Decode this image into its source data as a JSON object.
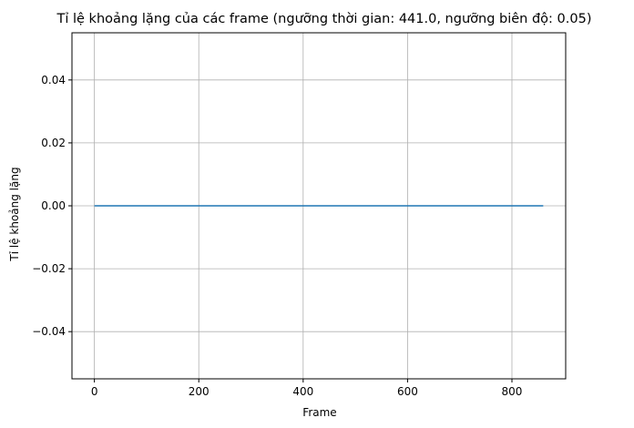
{
  "chart_data": {
    "type": "line",
    "title": "Tỉ lệ khoảng lặng của các frame (ngưỡng thời gian: 441.0, ngưỡng biên độ: 0.05)",
    "xlabel": "Frame",
    "ylabel": "Tỉ lệ khoảng lặng",
    "xlim": [
      -43,
      903
    ],
    "ylim": [
      -0.055,
      0.055
    ],
    "x_ticks": [
      0,
      200,
      400,
      600,
      800
    ],
    "y_ticks": [
      -0.04,
      -0.02,
      0.0,
      0.02,
      0.04
    ],
    "x_tick_labels": [
      "0",
      "200",
      "400",
      "600",
      "800"
    ],
    "y_tick_labels": [
      "−0.04",
      "−0.02",
      "0.00",
      "0.02",
      "0.04"
    ],
    "grid": true,
    "series": [
      {
        "x": [
          0,
          860
        ],
        "y": [
          0,
          0
        ],
        "color": "#1f77b4"
      }
    ]
  }
}
